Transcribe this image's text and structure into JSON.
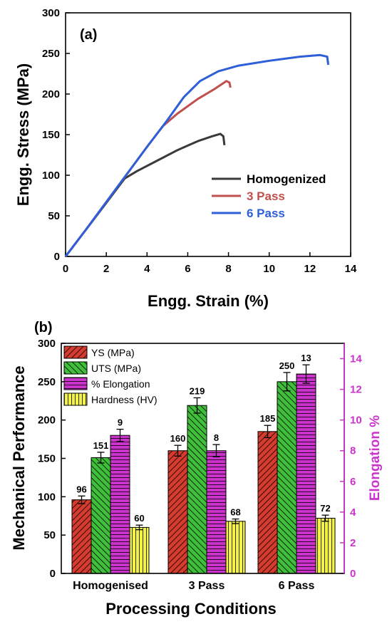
{
  "chart_data": [
    {
      "type": "line",
      "panel_label": "(a)",
      "xlabel": "Engg. Strain (%)",
      "ylabel": "Engg. Stress (MPa)",
      "xlim": [
        0,
        14
      ],
      "ylim": [
        0,
        300
      ],
      "xticks": [
        "0",
        "2",
        "4",
        "6",
        "8",
        "10",
        "12",
        "14"
      ],
      "yticks": [
        "0",
        "50",
        "100",
        "150",
        "200",
        "250",
        "300"
      ],
      "legend_position": "bottom-right",
      "series": [
        {
          "name": "Homogenized",
          "color": "#3a3a3a",
          "x": [
            0,
            1,
            2,
            2.9,
            3.5,
            4.5,
            5.5,
            6.5,
            7.2,
            7.6,
            7.75,
            7.8
          ],
          "y": [
            0,
            33,
            66,
            96,
            105,
            118,
            131,
            142,
            148,
            151,
            148,
            137
          ]
        },
        {
          "name": "3 Pass",
          "color": "#c0504d",
          "x": [
            0,
            1,
            2,
            3,
            4,
            4.8,
            5.5,
            6.5,
            7.3,
            7.9,
            8.05,
            8.1
          ],
          "y": [
            0,
            33,
            67,
            101,
            135,
            161,
            176,
            194,
            206,
            216,
            214,
            208
          ]
        },
        {
          "name": "6 Pass",
          "color": "#2e5ed8",
          "x": [
            0,
            1,
            2,
            3,
            4,
            5,
            5.8,
            6.6,
            7.5,
            8.5,
            10,
            11.5,
            12.5,
            12.85,
            12.9
          ],
          "y": [
            0,
            33,
            67,
            101,
            135,
            168,
            196,
            216,
            228,
            235,
            241,
            246,
            248,
            246,
            236
          ]
        }
      ]
    },
    {
      "type": "bar",
      "panel_label": "(b)",
      "xlabel": "Processing Conditions",
      "ylabel": "Mechanical Performance",
      "ylabel_right": "Elongation %",
      "categories": [
        "Homogenised",
        "3 Pass",
        "6 Pass"
      ],
      "ylim": [
        0,
        300
      ],
      "ylim_right": [
        0,
        15
      ],
      "yticks": [
        "0",
        "50",
        "100",
        "150",
        "200",
        "250",
        "300"
      ],
      "yticks_right": [
        "0",
        "2",
        "4",
        "6",
        "8",
        "10",
        "12",
        "14"
      ],
      "legend_position": "top-left",
      "series": [
        {
          "name": "YS (MPa)",
          "color": "#d63b2f",
          "axis": "left",
          "values": [
            96,
            160,
            185
          ],
          "errors": [
            5,
            7,
            8
          ],
          "labels": [
            "96",
            "160",
            "185"
          ]
        },
        {
          "name": "UTS (MPa)",
          "color": "#3fbf3a",
          "axis": "left",
          "values": [
            151,
            219,
            250
          ],
          "errors": [
            7,
            10,
            12
          ],
          "labels": [
            "151",
            "219",
            "250"
          ]
        },
        {
          "name": "% Elongation",
          "color": "#cc33cc",
          "axis": "right",
          "values": [
            9,
            8,
            13
          ],
          "errors": [
            0.4,
            0.4,
            0.6
          ],
          "labels": [
            "9",
            "8",
            "13"
          ]
        },
        {
          "name": "Hardness (HV)",
          "color": "#f2f24a",
          "axis": "left",
          "values": [
            60,
            68,
            72
          ],
          "errors": [
            3,
            3,
            4
          ],
          "labels": [
            "60",
            "68",
            "72"
          ]
        }
      ]
    }
  ]
}
